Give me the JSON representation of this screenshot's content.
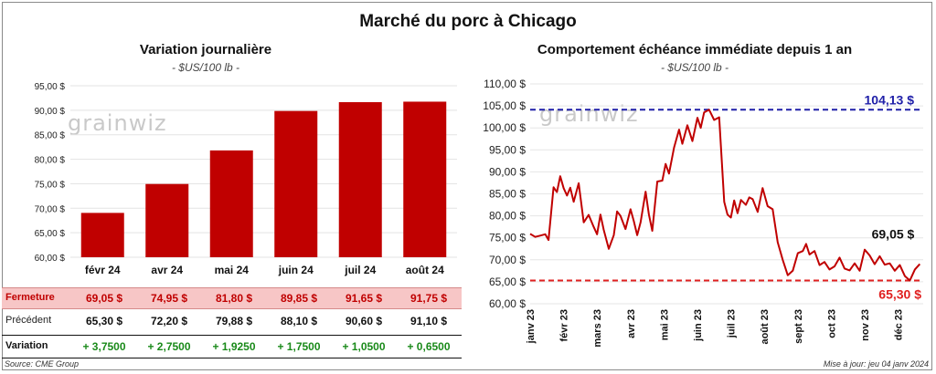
{
  "header": {
    "title": "Marché du porc à Chicago"
  },
  "watermark": "grainwiz",
  "left_panel": {
    "title": "Variation  journalière",
    "unit": "- $US/100 lb -"
  },
  "right_panel": {
    "title": "Comportement  échéance immédiate depuis 1 an",
    "unit": "- $US/100 lb -"
  },
  "table": {
    "rows": [
      {
        "label": "Fermeture",
        "values": [
          "69,05  $",
          "74,95  $",
          "81,80  $",
          "89,85  $",
          "91,65  $",
          "91,75  $"
        ]
      },
      {
        "label": "Précédent",
        "values": [
          "65,30  $",
          "72,20  $",
          "79,88  $",
          "88,10  $",
          "90,60  $",
          "91,10  $"
        ]
      },
      {
        "label": "Variation",
        "values": [
          "+ 3,7500",
          "+ 2,7500",
          "+ 1,9250",
          "+ 1,7500",
          "+ 1,0500",
          "+ 0,6500"
        ]
      }
    ]
  },
  "footer": {
    "source": "Source: CME Group",
    "updated": "Mise à jour: jeu 04 janv 2024"
  },
  "colors": {
    "bar": "#c00000",
    "line": "#c00000",
    "high_line": "#1f1fa8",
    "low_line": "#e02020",
    "fermeture_row": "#f7c6c6",
    "variation_text": "#1a8a1a"
  },
  "chart_data": [
    {
      "type": "bar",
      "title": "Variation  journalière",
      "categories": [
        "févr 24",
        "avr 24",
        "mai 24",
        "juin 24",
        "juil 24",
        "août 24"
      ],
      "values": [
        69.05,
        74.95,
        81.8,
        89.85,
        91.65,
        91.75
      ],
      "ylim": [
        60,
        95
      ],
      "yticks": [
        60,
        65,
        70,
        75,
        80,
        85,
        90,
        95
      ],
      "ytick_labels": [
        "60,00 $",
        "65,00 $",
        "70,00 $",
        "75,00 $",
        "80,00 $",
        "85,00 $",
        "90,00 $",
        "95,00 $"
      ],
      "grid": true
    },
    {
      "type": "line",
      "title": "Comportement  échéance immédiate depuis 1 an",
      "x_labels": [
        "janv 23",
        "févr 23",
        "mars 23",
        "avr 23",
        "mai 23",
        "juin 23",
        "juil 23",
        "août 23",
        "sept 23",
        "oct 23",
        "nov 23",
        "déc 23"
      ],
      "ylim": [
        60,
        110
      ],
      "yticks": [
        60,
        65,
        70,
        75,
        80,
        85,
        90,
        95,
        100,
        105,
        110
      ],
      "ytick_labels": [
        "60,00 $",
        "65,00 $",
        "70,00 $",
        "75,00 $",
        "80,00 $",
        "85,00 $",
        "90,00 $",
        "95,00 $",
        "100,00 $",
        "105,00 $",
        "110,00 $"
      ],
      "x": [
        0,
        0.15,
        0.3,
        0.45,
        0.55,
        0.7,
        0.8,
        0.9,
        1.0,
        1.1,
        1.2,
        1.3,
        1.45,
        1.6,
        1.75,
        1.9,
        2.0,
        2.1,
        2.2,
        2.35,
        2.5,
        2.6,
        2.7,
        2.85,
        3.0,
        3.1,
        3.2,
        3.3,
        3.45,
        3.55,
        3.65,
        3.8,
        3.95,
        4.05,
        4.15,
        4.3,
        4.45,
        4.55,
        4.7,
        4.85,
        5.0,
        5.1,
        5.2,
        5.35,
        5.5,
        5.65,
        5.8,
        5.9,
        6.0,
        6.1,
        6.2,
        6.3,
        6.45,
        6.55,
        6.65,
        6.8,
        6.95,
        7.1,
        7.25,
        7.4,
        7.55,
        7.7,
        7.85,
        8.0,
        8.15,
        8.25,
        8.35,
        8.5,
        8.65,
        8.8,
        8.95,
        9.1,
        9.25,
        9.4,
        9.55,
        9.7,
        9.85,
        10.0,
        10.15,
        10.3,
        10.45,
        10.6,
        10.75,
        10.9,
        11.05,
        11.2,
        11.35,
        11.5,
        11.65
      ],
      "y": [
        75.9,
        75.2,
        75.5,
        75.8,
        74.5,
        86.5,
        85.4,
        89.0,
        86.3,
        84.6,
        86.4,
        83.2,
        87.4,
        78.5,
        80.2,
        77.5,
        75.8,
        80.3,
        76.8,
        72.5,
        75.6,
        81.0,
        80.0,
        77.0,
        81.5,
        78.8,
        75.6,
        78.5,
        85.5,
        80.3,
        76.6,
        87.8,
        88.0,
        91.8,
        89.6,
        95.5,
        99.6,
        96.4,
        100.6,
        97.0,
        102.3,
        100.0,
        103.5,
        104.13,
        101.8,
        102.4,
        83.2,
        80.3,
        79.6,
        83.5,
        80.6,
        83.6,
        82.5,
        84.2,
        83.8,
        80.9,
        86.3,
        82.2,
        81.5,
        74.0,
        70.0,
        66.5,
        67.5,
        71.5,
        72.0,
        73.6,
        71.2,
        72.0,
        68.8,
        69.5,
        67.8,
        68.5,
        70.5,
        68.0,
        67.6,
        69.2,
        67.5,
        72.3,
        71.0,
        69.0,
        70.8,
        68.9,
        69.2,
        67.5,
        68.8,
        66.3,
        65.3,
        67.8,
        69.05
      ],
      "reference_lines": [
        {
          "value": 104.13,
          "label": "104,13 $"
        },
        {
          "value": 65.3,
          "label": "65,30 $"
        }
      ],
      "last_value_label": "69,05 $",
      "grid": true
    }
  ]
}
